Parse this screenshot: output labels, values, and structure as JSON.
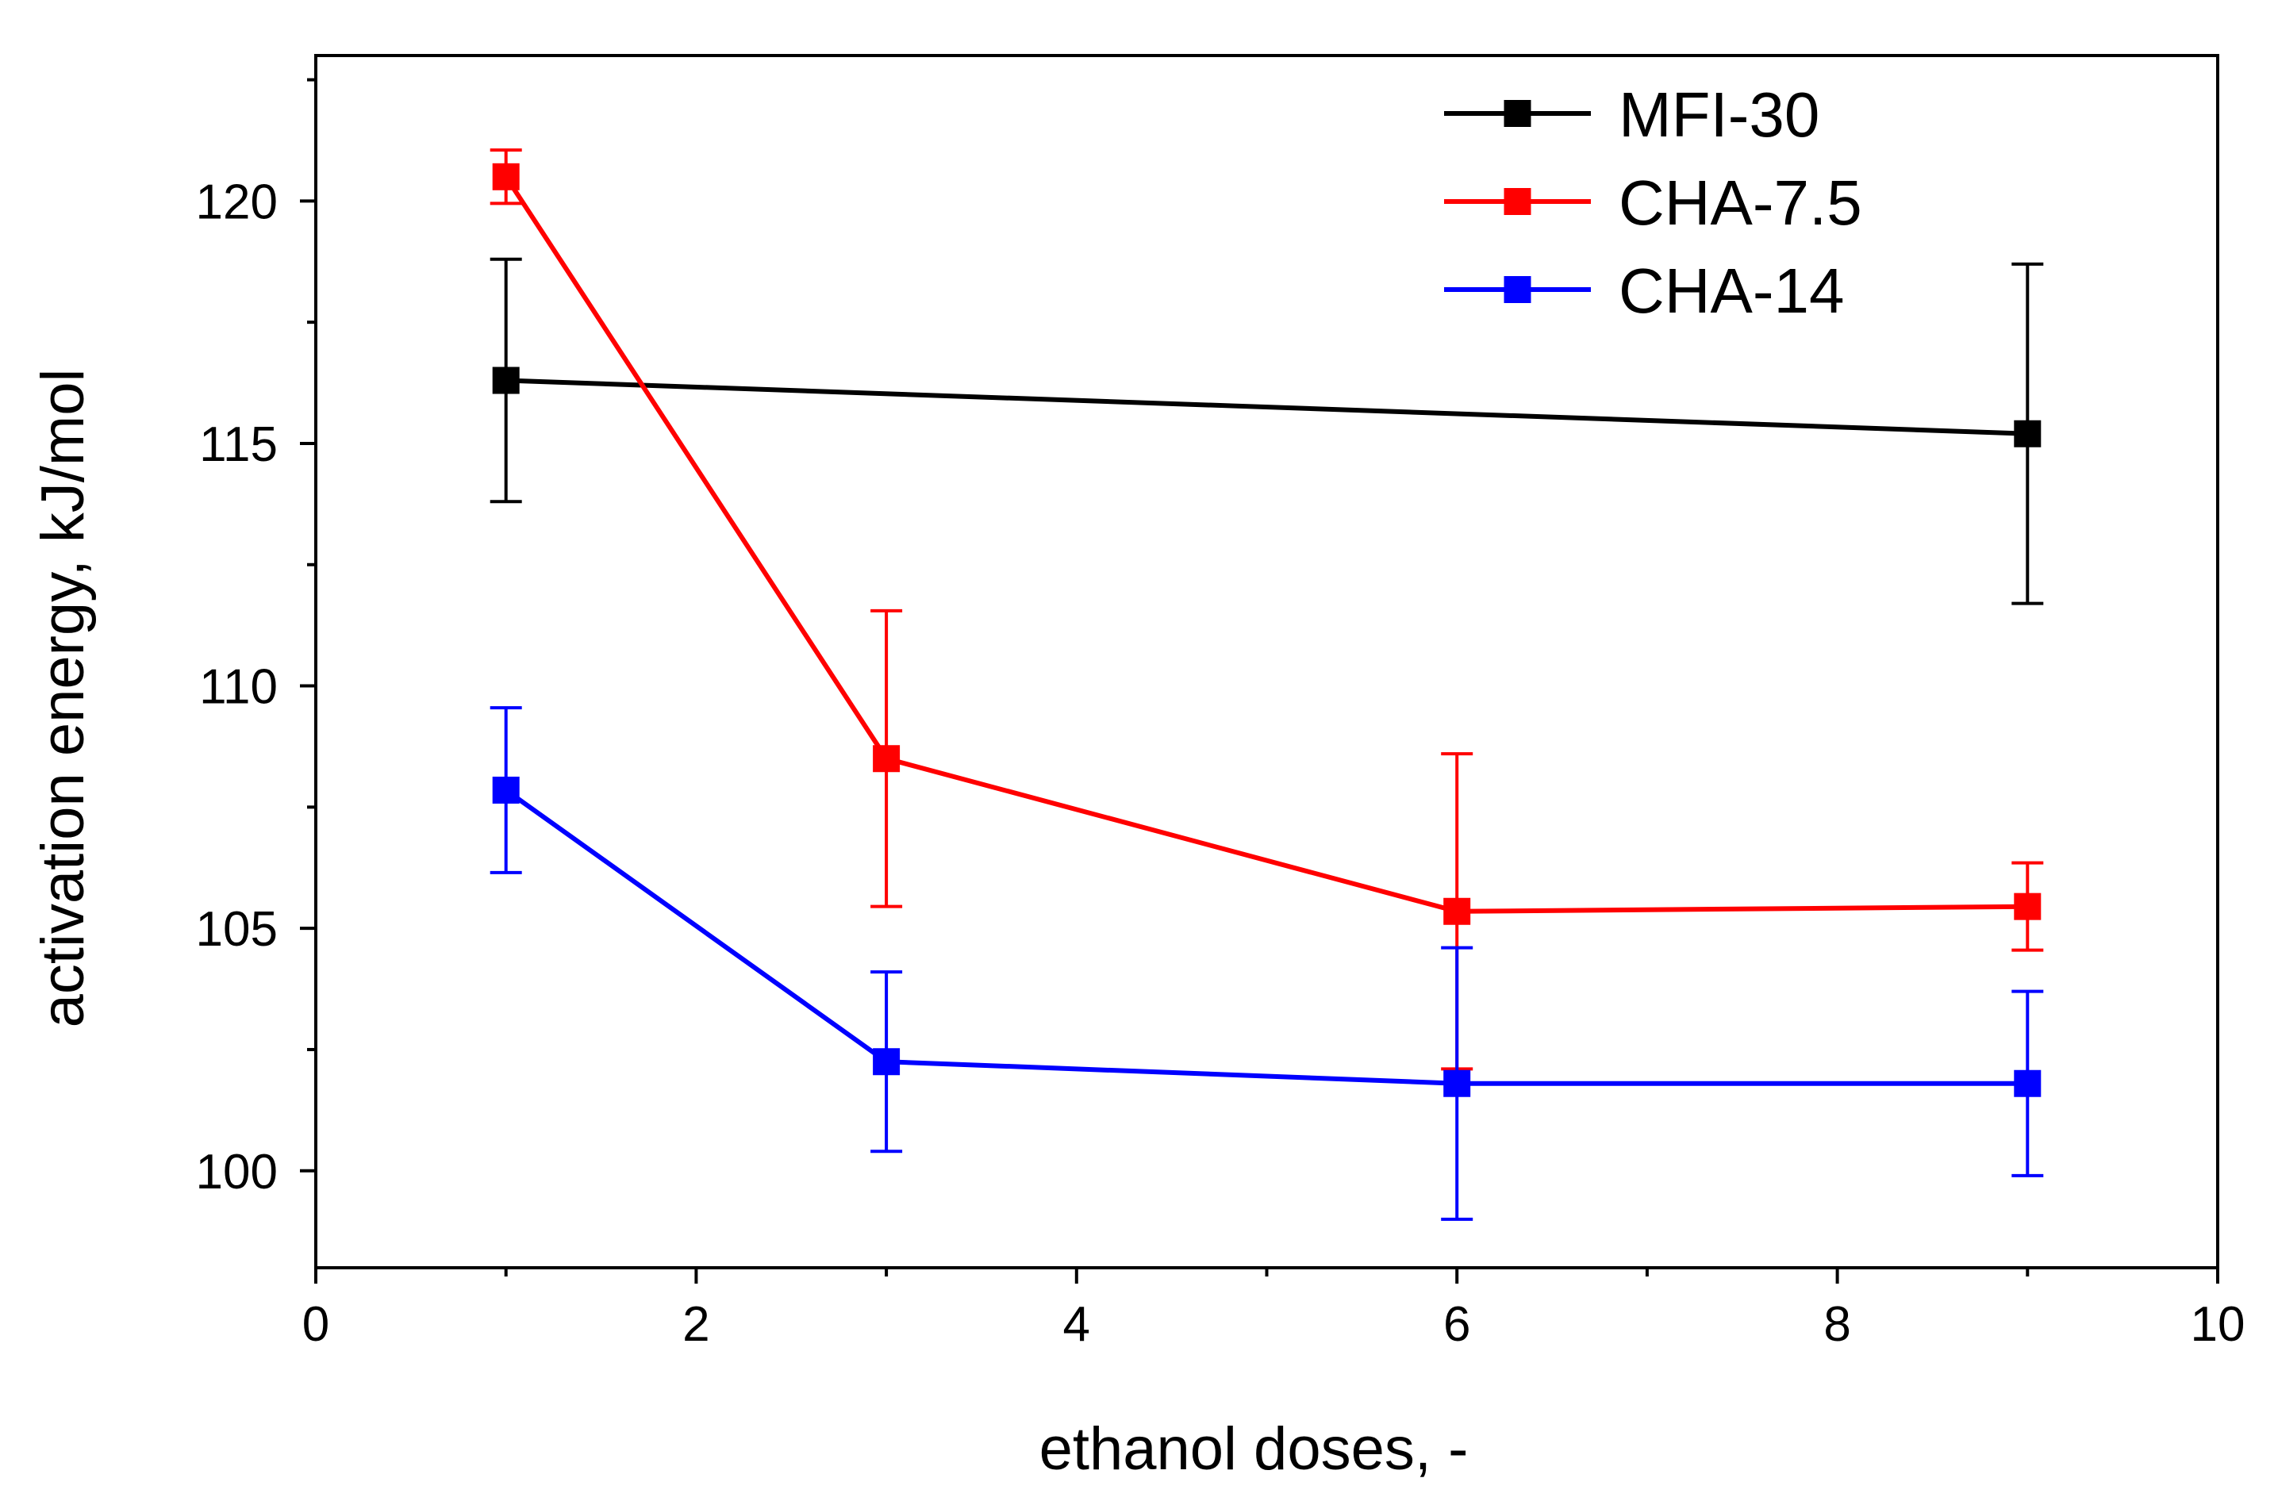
{
  "chart_data": {
    "type": "line",
    "title": "",
    "xlabel": "ethanol doses, -",
    "ylabel": "activation energy, kJ/mol",
    "xlim": [
      0,
      10
    ],
    "ylim": [
      98,
      123
    ],
    "x_ticks": [
      0,
      2,
      4,
      6,
      8,
      10
    ],
    "x_tick_labels": [
      "0",
      "2",
      "4",
      "6",
      "8",
      "10"
    ],
    "x_minor_ticks": [
      1,
      3,
      5,
      7,
      9
    ],
    "y_ticks": [
      100,
      105,
      110,
      115,
      120
    ],
    "y_tick_labels": [
      "100",
      "105",
      "110",
      "115",
      "120"
    ],
    "y_minor_ticks": [
      102.5,
      107.5,
      112.5,
      117.5,
      122.5
    ],
    "grid": false,
    "legend_position": "top-right",
    "series": [
      {
        "name": "MFI-30",
        "color": "#000000",
        "marker": "square",
        "x": [
          1,
          9
        ],
        "y": [
          116.3,
          115.2
        ],
        "error": [
          2.5,
          3.5
        ]
      },
      {
        "name": "CHA-7.5",
        "color": "#ff0000",
        "marker": "square",
        "x": [
          1,
          3,
          6,
          9
        ],
        "y": [
          120.5,
          108.5,
          105.35,
          105.45
        ],
        "error": [
          0.55,
          3.05,
          3.25,
          0.9
        ]
      },
      {
        "name": "CHA-14",
        "color": "#0000ff",
        "marker": "square",
        "x": [
          1,
          3,
          6,
          9
        ],
        "y": [
          107.85,
          102.25,
          101.8,
          101.8
        ],
        "error": [
          1.7,
          1.85,
          2.8,
          1.9
        ]
      }
    ]
  }
}
